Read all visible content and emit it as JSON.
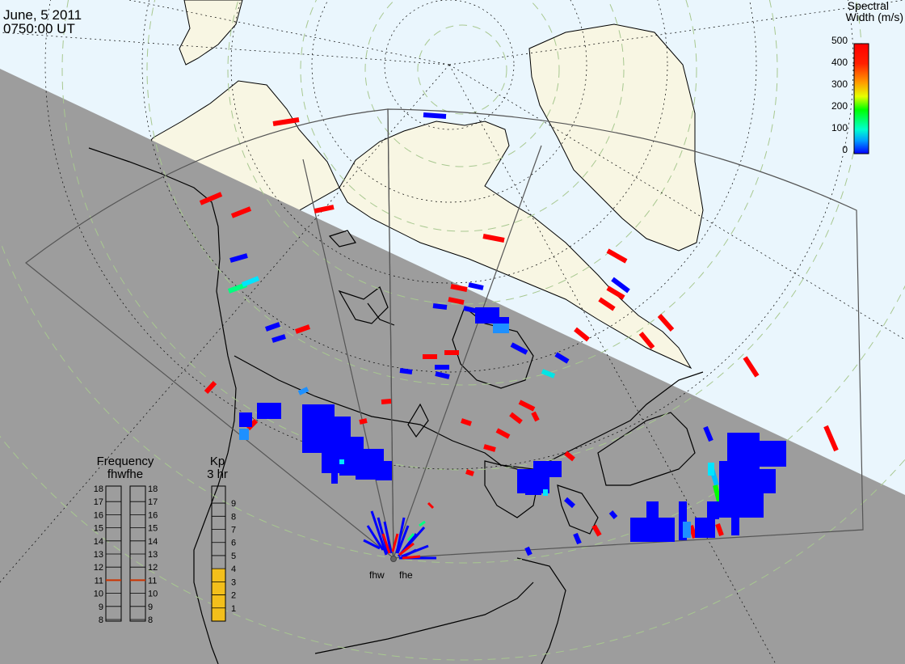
{
  "header": {
    "date": "June, 5 2011",
    "time": "0750:00 UT"
  },
  "colorbar": {
    "title_line1": "Spectral",
    "title_line2": "Width (m/s)",
    "ticks": [
      "500",
      "400",
      "300",
      "200",
      "100",
      "0"
    ],
    "colors": [
      "#ff0000",
      "#ff8000",
      "#ffff00",
      "#00ff00",
      "#00ffff",
      "#0000ff"
    ]
  },
  "frequency_panel": {
    "title": "Frequency",
    "radar_labels": "fhwfhe",
    "ticks": [
      "18",
      "17",
      "16",
      "15",
      "14",
      "13",
      "12",
      "11",
      "10",
      "9",
      "8"
    ],
    "fhw_value": 11,
    "fhe_value": 11
  },
  "kp_panel": {
    "title": "Kp",
    "subtitle": "3 hr",
    "ticks": [
      "9",
      "8",
      "7",
      "6",
      "5",
      "4",
      "3",
      "2",
      "1"
    ],
    "value": 4
  },
  "radars": {
    "west": "fhw",
    "east": "fhe"
  },
  "colors": {
    "day_side": "#eaf6fd",
    "night_side": "#9d9d9d",
    "land_day": "#f8f6e3",
    "grid_circles": "#a8c890",
    "kp_fill": "#f3bf1b",
    "frequency_marker": "#cc3300"
  }
}
